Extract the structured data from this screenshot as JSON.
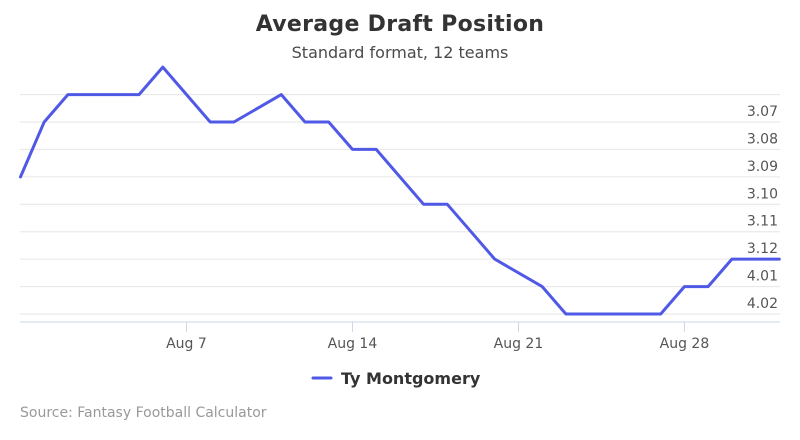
{
  "title": "Average Draft Position",
  "subtitle": "Standard format, 12 teams",
  "source": "Source: Fantasy Football Calculator",
  "colors": {
    "series": "#5059e6",
    "grid": "#e6e6e6",
    "axis": "#ccd6eb"
  },
  "chart_data": {
    "type": "line",
    "title": "Average Draft Position",
    "subtitle": "Standard format, 12 teams",
    "xlabel": "",
    "ylabel": "",
    "x_ticks": [
      "Aug 7",
      "Aug 14",
      "Aug 21",
      "Aug 28"
    ],
    "y_ticks": [
      "3.07",
      "3.08",
      "3.09",
      "3.10",
      "3.11",
      "3.12",
      "4.01",
      "4.02"
    ],
    "y_scale": "draft pick (round.pick), 12-team league",
    "grid": true,
    "legend_position": "bottom-center",
    "series": [
      {
        "name": "Ty Montgomery",
        "color": "#5059e6",
        "points": [
          {
            "x": "Jul 31",
            "y": "3.09"
          },
          {
            "x": "Aug 1",
            "y": "3.07"
          },
          {
            "x": "Aug 2",
            "y": "3.06"
          },
          {
            "x": "Aug 3",
            "y": "3.06"
          },
          {
            "x": "Aug 4",
            "y": "3.06"
          },
          {
            "x": "Aug 5",
            "y": "3.06"
          },
          {
            "x": "Aug 6",
            "y": "3.05"
          },
          {
            "x": "Aug 8",
            "y": "3.07"
          },
          {
            "x": "Aug 9",
            "y": "3.07"
          },
          {
            "x": "Aug 11",
            "y": "3.06"
          },
          {
            "x": "Aug 12",
            "y": "3.07"
          },
          {
            "x": "Aug 13",
            "y": "3.07"
          },
          {
            "x": "Aug 14",
            "y": "3.08"
          },
          {
            "x": "Aug 15",
            "y": "3.08"
          },
          {
            "x": "Aug 16",
            "y": "3.09"
          },
          {
            "x": "Aug 17",
            "y": "3.10"
          },
          {
            "x": "Aug 18",
            "y": "3.10"
          },
          {
            "x": "Aug 19",
            "y": "3.11"
          },
          {
            "x": "Aug 20",
            "y": "3.12"
          },
          {
            "x": "Aug 22",
            "y": "4.01"
          },
          {
            "x": "Aug 23",
            "y": "4.02"
          },
          {
            "x": "Aug 24",
            "y": "4.02"
          },
          {
            "x": "Aug 25",
            "y": "4.02"
          },
          {
            "x": "Aug 26",
            "y": "4.02"
          },
          {
            "x": "Aug 27",
            "y": "4.02"
          },
          {
            "x": "Aug 28",
            "y": "4.01"
          },
          {
            "x": "Aug 29",
            "y": "4.01"
          },
          {
            "x": "Aug 30",
            "y": "3.12"
          },
          {
            "x": "Aug 31",
            "y": "3.12"
          },
          {
            "x": "Sep 1",
            "y": "3.12"
          }
        ]
      }
    ]
  }
}
